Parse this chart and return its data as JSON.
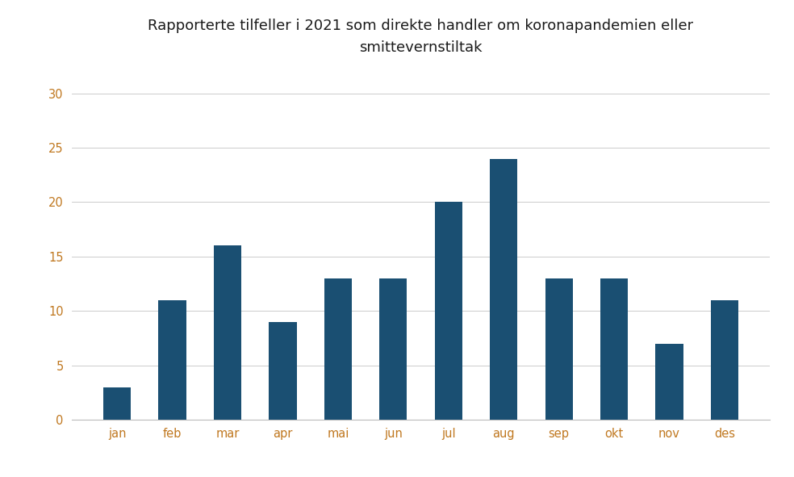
{
  "title": "Rapporterte tilfeller i 2021 som direkte handler om koronapandemien eller\nsmittevernstiltak",
  "categories": [
    "jan",
    "feb",
    "mar",
    "apr",
    "mai",
    "jun",
    "jul",
    "aug",
    "sep",
    "okt",
    "nov",
    "des"
  ],
  "values": [
    3,
    11,
    16,
    9,
    13,
    13,
    20,
    24,
    13,
    13,
    7,
    11
  ],
  "bar_color": "#1a4f72",
  "ylim": [
    0,
    32
  ],
  "yticks": [
    0,
    5,
    10,
    15,
    20,
    25,
    30
  ],
  "background_color": "#ffffff",
  "grid_color": "#cccccc",
  "title_fontsize": 13,
  "tick_fontsize": 10.5,
  "tick_color": "#c07820",
  "title_color": "#1a1a1a"
}
